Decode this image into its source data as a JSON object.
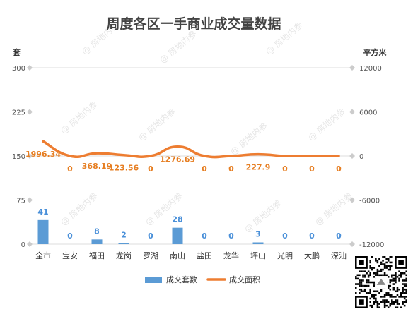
{
  "watermark": "@ 房地内参",
  "chart_data": {
    "type": "bar",
    "title": "周度各区一手商业成交量数据",
    "categories": [
      "全市",
      "宝安",
      "福田",
      "龙岗",
      "罗湖",
      "南山",
      "盐田",
      "龙华",
      "坪山",
      "光明",
      "大鹏",
      "深汕"
    ],
    "series": [
      {
        "name": "成交套数",
        "type": "bar",
        "axis": "left",
        "color": "#5b9bd5",
        "values": [
          41,
          0,
          8,
          2,
          0,
          28,
          0,
          0,
          3,
          0,
          0,
          0
        ],
        "labels": [
          "41",
          "0",
          "8",
          "2",
          "0",
          "28",
          "0",
          "0",
          "3",
          "0",
          "0",
          "0"
        ]
      },
      {
        "name": "成交面积",
        "type": "line",
        "axis": "right",
        "color": "#ed7d31",
        "values": [
          1996.34,
          0,
          368.19,
          123.56,
          0,
          1276.69,
          0,
          0,
          227.9,
          0,
          0,
          0
        ],
        "labels": [
          "1996.34",
          "0",
          "368.19",
          "123.56",
          "0",
          "1276.69",
          "0",
          "0",
          "227.9",
          "0",
          "0",
          "0"
        ]
      }
    ],
    "y_left": {
      "label": "套",
      "ylim": [
        0,
        300
      ],
      "ticks": [
        "0",
        "75",
        "150",
        "225",
        "300"
      ]
    },
    "y_right": {
      "label": "平方米",
      "ylim": [
        -12000,
        12000
      ],
      "ticks": [
        "-12000",
        "-6000",
        "0",
        "6000",
        "12000"
      ]
    },
    "grid": true,
    "legend": "bottom-center"
  }
}
